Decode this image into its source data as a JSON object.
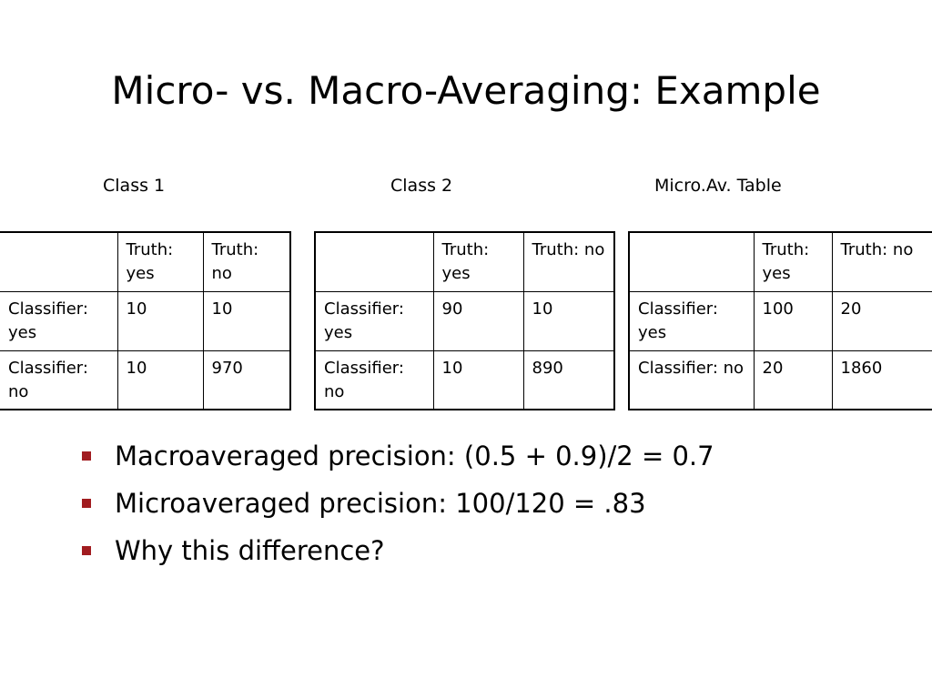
{
  "slide": {
    "title": "Micro- vs. Macro-Averaging: Example",
    "accent_color": "#a11c20"
  },
  "captions": [
    "Class 1",
    "Class 2",
    "Micro.Av. Table"
  ],
  "tables": [
    {
      "header": [
        "",
        "Truth: yes",
        "Truth: no"
      ],
      "rows": [
        [
          "Classifier: yes",
          "10",
          "10"
        ],
        [
          "Classifier: no",
          "10",
          "970"
        ]
      ]
    },
    {
      "header": [
        "",
        "Truth: yes",
        "Truth: no"
      ],
      "rows": [
        [
          "Classifier: yes",
          "90",
          "10"
        ],
        [
          "Classifier: no",
          "10",
          "890"
        ]
      ]
    },
    {
      "header": [
        "",
        "Truth: yes",
        "Truth: no"
      ],
      "rows": [
        [
          "Classifier: yes",
          "100",
          "20"
        ],
        [
          "Classifier: no",
          "20",
          "1860"
        ]
      ]
    }
  ],
  "bullets": [
    "Macroaveraged precision: (0.5 + 0.9)/2 = 0.7",
    "Microaveraged precision: 100/120 = .83",
    "Why this difference?"
  ]
}
